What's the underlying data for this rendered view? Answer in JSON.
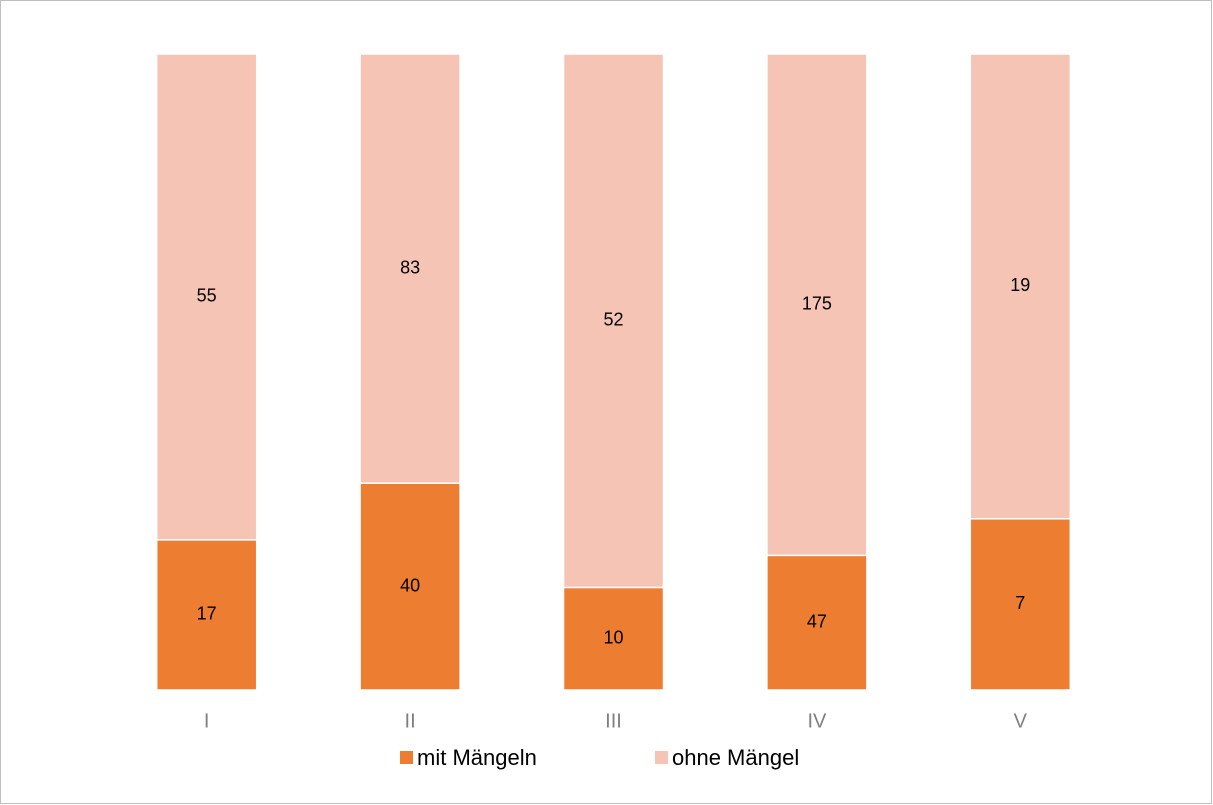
{
  "chart_data": {
    "type": "bar",
    "stacked": "percent",
    "categories": [
      "I",
      "II",
      "III",
      "IV",
      "V"
    ],
    "series": [
      {
        "name": "mit Mängeln",
        "color": "#ed7d31",
        "values": [
          17,
          40,
          10,
          47,
          7
        ]
      },
      {
        "name": "ohne Mängel",
        "color": "#f5c4b5",
        "values": [
          55,
          83,
          52,
          175,
          19
        ]
      }
    ]
  }
}
